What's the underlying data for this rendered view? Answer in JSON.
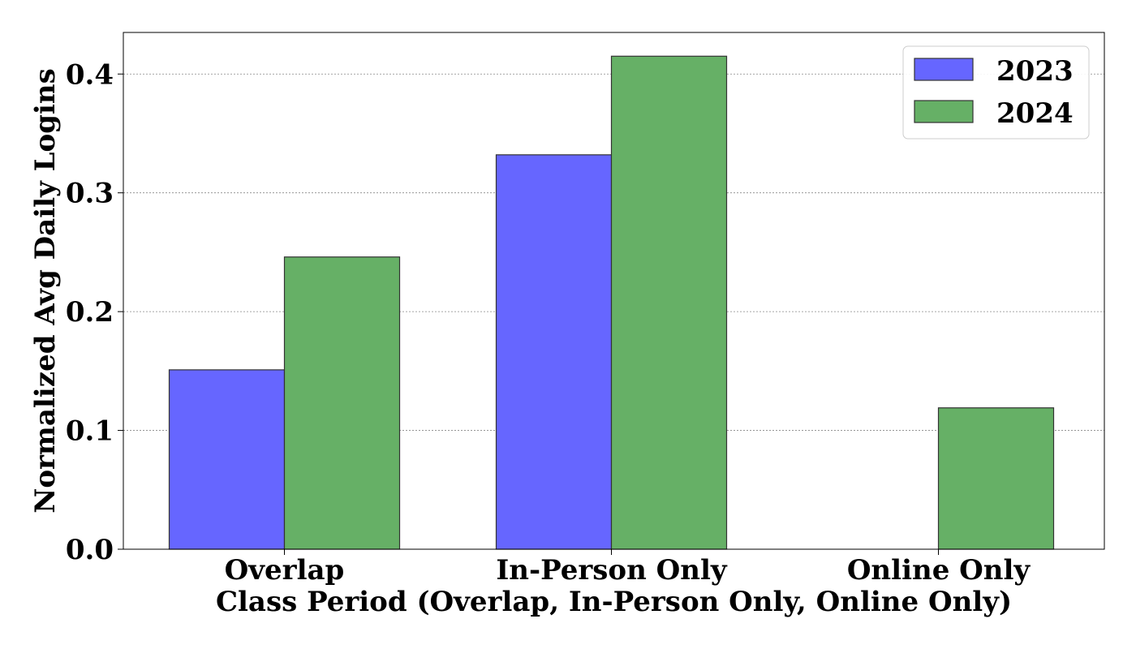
{
  "chart_data": {
    "type": "bar",
    "title": "",
    "xlabel": "Class Period (Overlap, In-Person Only, Online Only)",
    "ylabel": "Normalized Avg Daily Logins",
    "categories": [
      "Overlap",
      "In-Person Only",
      "Online Only"
    ],
    "series": [
      {
        "name": "2023",
        "color": "#6666ff",
        "values": [
          0.151,
          0.332,
          0.0
        ]
      },
      {
        "name": "2024",
        "color": "#66b066",
        "values": [
          0.246,
          0.415,
          0.119
        ]
      }
    ],
    "ylim": [
      0,
      0.435
    ],
    "yticks": [
      0.0,
      0.1,
      0.2,
      0.3,
      0.4
    ],
    "ytick_labels": [
      "0.0",
      "0.1",
      "0.2",
      "0.3",
      "0.4"
    ],
    "grid": "y-dashed",
    "legend": "top-right"
  }
}
